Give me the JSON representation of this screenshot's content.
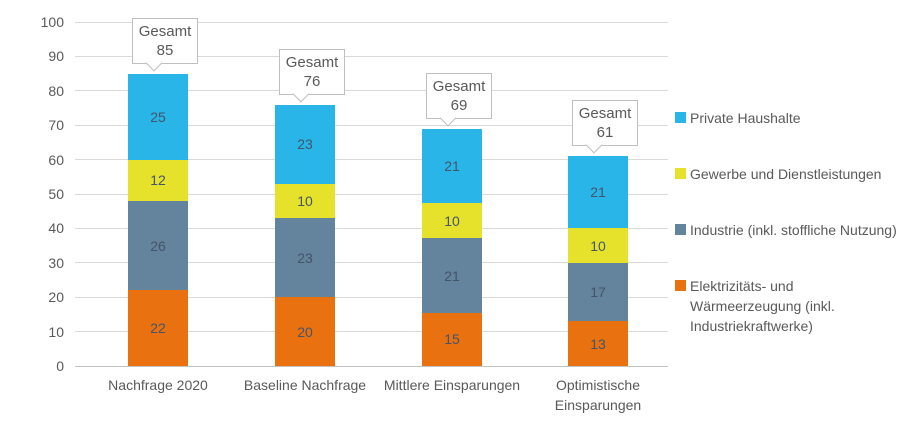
{
  "chart_data": {
    "type": "stacked-bar",
    "title": "",
    "categories": [
      "Nachfrage 2020",
      "Baseline Nachfrage",
      "Mittlere Einsparungen",
      "Optimistische Einsparungen"
    ],
    "series": [
      {
        "name": "Elektrizitäts- und Wärmeerzeugung (inkl. Industriekraftwerke)",
        "color": "#e9710f",
        "values": [
          22,
          20,
          15,
          13
        ]
      },
      {
        "name": "Industrie (inkl. stoffliche Nutzung)",
        "color": "#64839c",
        "values": [
          26,
          23,
          21,
          17
        ]
      },
      {
        "name": "Gewerbe und Dienstleistungen",
        "color": "#e6e22b",
        "values": [
          12,
          10,
          10,
          10
        ]
      },
      {
        "name": "Private Haushalte",
        "color": "#29b5e8",
        "values": [
          25,
          23,
          21,
          21
        ]
      }
    ],
    "totals": [
      85,
      76,
      69,
      61
    ],
    "total_label_prefix": "Gesamt",
    "ylim": [
      0,
      100
    ],
    "yticks": [
      0,
      10,
      20,
      30,
      40,
      50,
      60,
      70,
      80,
      90,
      100
    ],
    "grid": true,
    "legend_position": "right",
    "legend_order": [
      "Private Haushalte",
      "Gewerbe und Dienstleistungen",
      "Industrie (inkl. stoffliche Nutzung)",
      "Elektrizitäts- und Wärmeerzeugung (inkl. Industriekraftwerke)"
    ]
  },
  "colors": {
    "grid": "#d9d9d9",
    "axis_line": "#c2c2c2",
    "axis_text": "#595959",
    "bar_label_text": "#44546a",
    "callout_border": "#bfbfbf",
    "callout_text": "#595959",
    "background": "#ffffff"
  }
}
